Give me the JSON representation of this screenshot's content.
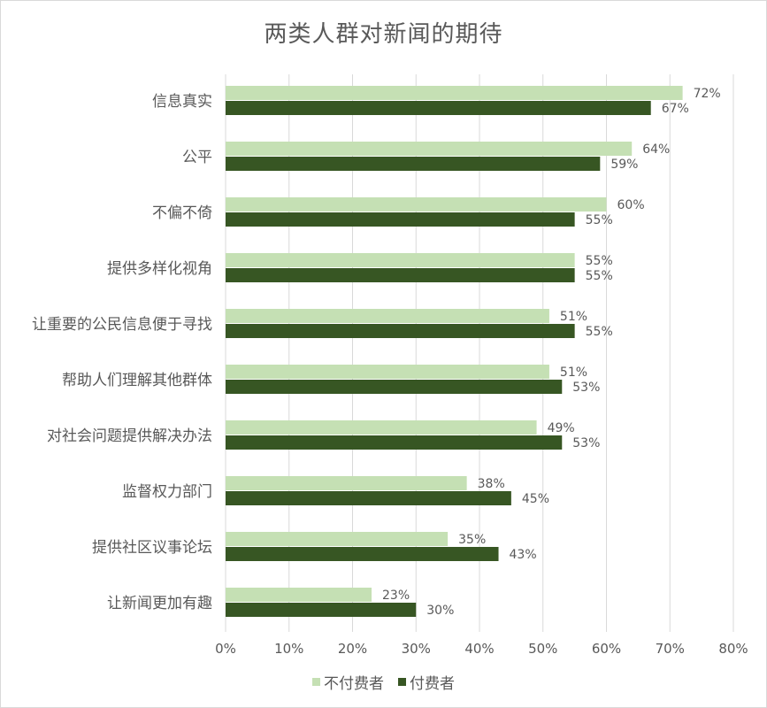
{
  "colors": {
    "non_payer": "#c5e0b4",
    "payer": "#375623",
    "grid": "#d9d9d9",
    "text": "#595959"
  },
  "chart_data": {
    "type": "bar",
    "orientation": "horizontal",
    "title": "两类人群对新闻的期待",
    "categories": [
      "信息真实",
      "公平",
      "不偏不倚",
      "提供多样化视角",
      "让重要的公民信息便于寻找",
      "帮助人们理解其他群体",
      "对社会问题提供解决办法",
      "监督权力部门",
      "提供社区议事论坛",
      "让新闻更加有趣"
    ],
    "series": [
      {
        "name": "不付费者",
        "color": "#c5e0b4",
        "values": [
          72,
          64,
          60,
          55,
          51,
          51,
          49,
          38,
          35,
          23
        ],
        "labels": [
          "72%",
          "64%",
          "60%",
          "55%",
          "51%",
          "51%",
          "49%",
          "38%",
          "35%",
          "23%"
        ]
      },
      {
        "name": "付费者",
        "color": "#375623",
        "values": [
          67,
          59,
          55,
          55,
          55,
          53,
          53,
          45,
          43,
          30
        ],
        "labels": [
          "67%",
          "59%",
          "55%",
          "55%",
          "55%",
          "53%",
          "53%",
          "45%",
          "43%",
          "30%"
        ]
      }
    ],
    "xlim": [
      0,
      80
    ],
    "x_ticks": [
      "0%",
      "10%",
      "20%",
      "30%",
      "40%",
      "50%",
      "60%",
      "70%",
      "80%"
    ],
    "grid": true,
    "legend_position": "bottom"
  }
}
